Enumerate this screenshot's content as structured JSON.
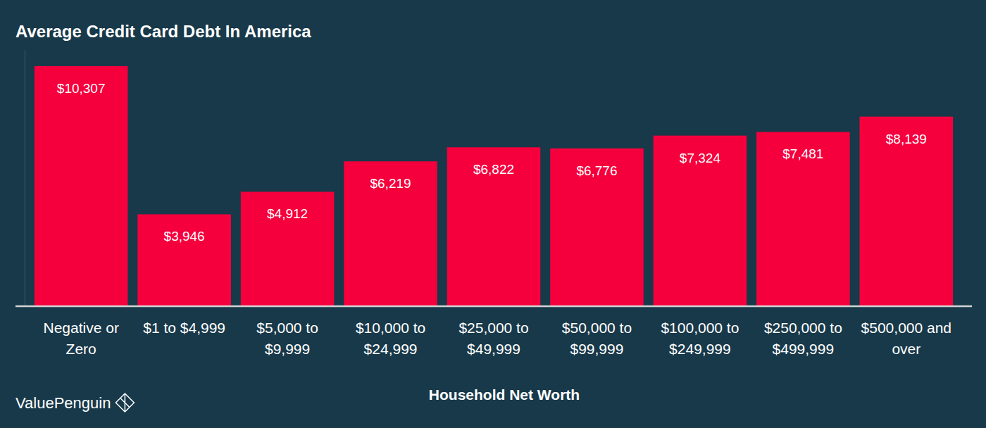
{
  "chart_data": {
    "type": "bar",
    "title": "Average Credit Card Debt In America",
    "xlabel": "Household Net Worth",
    "annotations": [
      "ValuePenguin"
    ],
    "categories": [
      "Negative or Zero",
      "$1 to $4,999",
      "$5,000 to $9,999",
      "$10,000 to $24,999",
      "$25,000 to $49,999",
      "$50,000 to $99,999",
      "$100,000 to $249,999",
      "$250,000 to $499,999",
      "$500,000 and over"
    ],
    "values": [
      10307,
      3946,
      4912,
      6219,
      6822,
      6776,
      7324,
      7481,
      8139
    ],
    "value_labels": [
      "$10,307",
      "$3,946",
      "$4,912",
      "$6,219",
      "$6,822",
      "$6,776",
      "$7,324",
      "$7,481",
      "$8,139"
    ],
    "color": "#f5003d",
    "ylim": [
      0,
      11000
    ],
    "data_labels": true,
    "tick_labels": "x"
  }
}
